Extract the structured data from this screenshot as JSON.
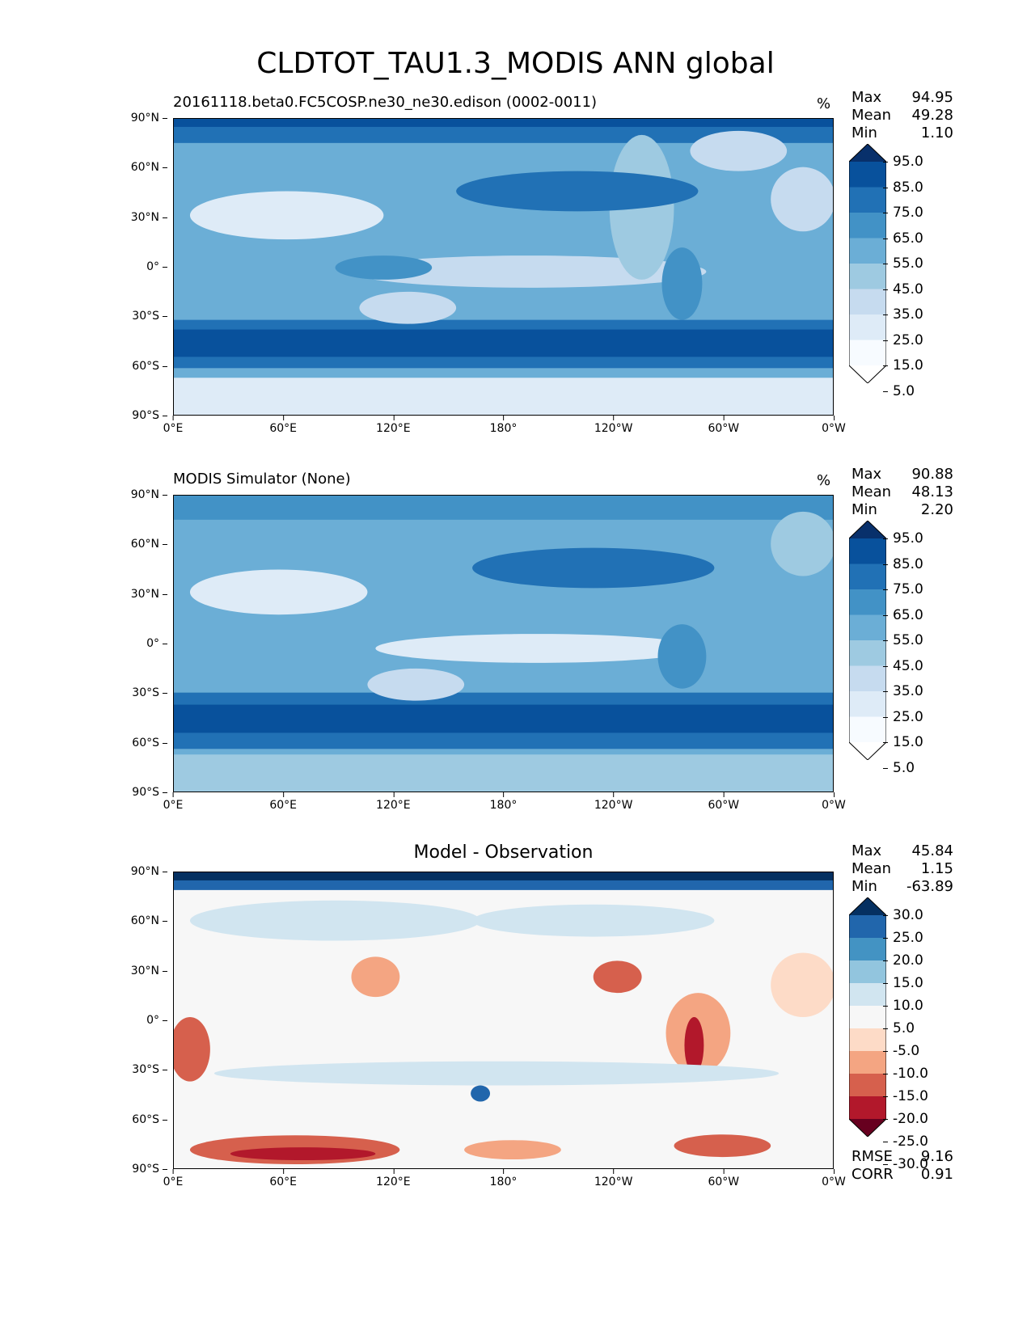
{
  "title": "CLDTOT_TAU1.3_MODIS ANN global",
  "lat_ticks": [
    "90°N",
    "60°N",
    "30°N",
    "0°",
    "30°S",
    "60°S",
    "90°S"
  ],
  "lon_ticks": [
    "0°E",
    "60°E",
    "120°E",
    "180°",
    "120°W",
    "60°W",
    "0°W"
  ],
  "panels": [
    {
      "title": "20161118.beta0.FC5COSP.ne30_ne30.edison (0002-0011)",
      "unit": "%",
      "stats": {
        "max_label": "Max",
        "max": "94.95",
        "mean_label": "Mean",
        "mean": "49.28",
        "min_label": "Min",
        "min": "1.10"
      },
      "colorbar": {
        "levels": [
          "95.0",
          "85.0",
          "75.0",
          "65.0",
          "55.0",
          "45.0",
          "35.0",
          "25.0",
          "15.0",
          "5.0"
        ]
      }
    },
    {
      "title": "MODIS Simulator (None)",
      "unit": "%",
      "stats": {
        "max_label": "Max",
        "max": "90.88",
        "mean_label": "Mean",
        "mean": "48.13",
        "min_label": "Min",
        "min": "2.20"
      },
      "colorbar": {
        "levels": [
          "95.0",
          "85.0",
          "75.0",
          "65.0",
          "55.0",
          "45.0",
          "35.0",
          "25.0",
          "15.0",
          "5.0"
        ]
      }
    },
    {
      "title": "Model - Observation",
      "stats": {
        "max_label": "Max",
        "max": "45.84",
        "mean_label": "Mean",
        "mean": "1.15",
        "min_label": "Min",
        "min": "-63.89"
      },
      "colorbar": {
        "levels": [
          "30.0",
          "25.0",
          "20.0",
          "15.0",
          "10.0",
          "5.0",
          "-5.0",
          "-10.0",
          "-15.0",
          "-20.0",
          "-25.0",
          "-30.0"
        ]
      },
      "metrics": {
        "rmse_label": "RMSE",
        "rmse": "9.16",
        "corr_label": "CORR",
        "corr": "0.91"
      }
    }
  ],
  "colors": {
    "blues": [
      "#08306b",
      "#08519c",
      "#2171b5",
      "#4292c6",
      "#6baed6",
      "#9ecae1",
      "#c6dbef",
      "#deebf7",
      "#f7fbff"
    ],
    "diverging": [
      "#053061",
      "#2166ac",
      "#4393c3",
      "#92c5de",
      "#d1e5f0",
      "#f7f7f7",
      "#fddbc7",
      "#f4a582",
      "#d6604d",
      "#b2182b",
      "#67001f"
    ]
  }
}
